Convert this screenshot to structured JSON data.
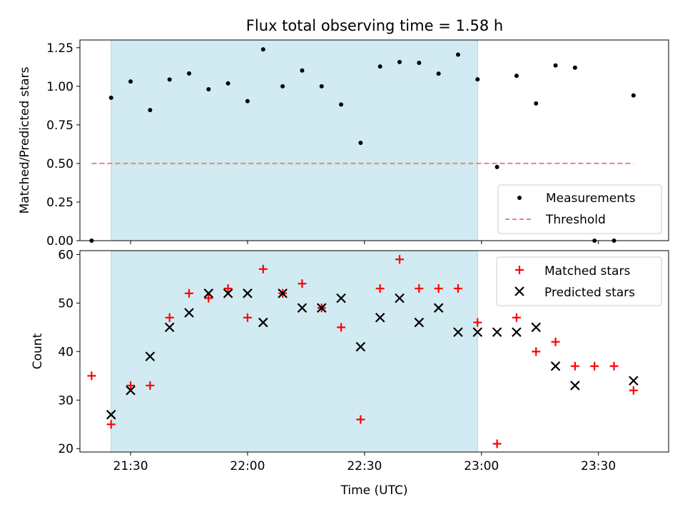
{
  "chart_data": [
    {
      "type": "scatter",
      "panel": "top",
      "title": "Flux total observing time = 1.58 h",
      "xlabel": "",
      "ylabel": "Matched/Predicted stars",
      "x_unit": "minutes",
      "xlim": [
        "21:17",
        "23:48"
      ],
      "ylim": [
        0,
        1.3
      ],
      "yticks": [
        0.0,
        0.25,
        0.5,
        0.75,
        1.0,
        1.25
      ],
      "ytick_labels": [
        "0.00",
        "0.25",
        "0.50",
        "0.75",
        "1.00",
        "1.25"
      ],
      "xticks": [
        "21:30",
        "22:00",
        "22:30",
        "23:00",
        "23:30"
      ],
      "legend_position": "lower-right",
      "shaded_span": [
        "21:25",
        "22:59"
      ],
      "colors": {
        "shade": "#add8e6",
        "measurements": "#000000",
        "threshold": "#f08080"
      },
      "series": [
        {
          "name": "Measurements",
          "marker": "dot",
          "x": [
            "21:20",
            "21:25",
            "21:30",
            "21:35",
            "21:40",
            "21:45",
            "21:50",
            "21:55",
            "22:00",
            "22:04",
            "22:09",
            "22:14",
            "22:19",
            "22:24",
            "22:29",
            "22:34",
            "22:39",
            "22:44",
            "22:49",
            "22:54",
            "22:59",
            "23:04",
            "23:09",
            "23:14",
            "23:19",
            "23:24",
            "23:29",
            "23:34",
            "23:39"
          ],
          "y": [
            0.0,
            0.926,
            1.031,
            0.846,
            1.044,
            1.083,
            0.981,
            1.019,
            0.904,
            1.239,
            1.0,
            1.102,
            1.0,
            0.882,
            0.634,
            1.128,
            1.157,
            1.152,
            1.082,
            1.205,
            1.045,
            0.477,
            1.068,
            0.889,
            1.135,
            1.121,
            0.0,
            0.0,
            0.941
          ]
        },
        {
          "name": "Threshold",
          "line": "dashed",
          "x": [
            "21:20",
            "23:39"
          ],
          "y": [
            0.5,
            0.5
          ]
        }
      ]
    },
    {
      "type": "scatter",
      "panel": "bottom",
      "title": "",
      "xlabel": "Time (UTC)",
      "ylabel": "Count",
      "x_unit": "minutes",
      "xlim": [
        "21:17",
        "23:48"
      ],
      "ylim": [
        19.3,
        60.8
      ],
      "yticks": [
        20,
        30,
        40,
        50,
        60
      ],
      "ytick_labels": [
        "20",
        "30",
        "40",
        "50",
        "60"
      ],
      "xticks": [
        "21:30",
        "22:00",
        "22:30",
        "23:00",
        "23:30"
      ],
      "legend_position": "upper-right",
      "shaded_span": [
        "21:25",
        "22:59"
      ],
      "colors": {
        "shade": "#add8e6",
        "matched": "#ff0000",
        "predicted": "#000000"
      },
      "series": [
        {
          "name": "Matched stars",
          "marker": "plus",
          "x": [
            "21:20",
            "21:25",
            "21:30",
            "21:35",
            "21:40",
            "21:45",
            "21:50",
            "21:55",
            "22:00",
            "22:04",
            "22:09",
            "22:14",
            "22:19",
            "22:24",
            "22:29",
            "22:34",
            "22:39",
            "22:44",
            "22:49",
            "22:54",
            "22:59",
            "23:04",
            "23:09",
            "23:14",
            "23:19",
            "23:24",
            "23:29",
            "23:34",
            "23:39"
          ],
          "y": [
            35,
            25,
            33,
            33,
            47,
            52,
            51,
            53,
            47,
            57,
            52,
            54,
            49,
            45,
            26,
            53,
            59,
            53,
            53,
            53,
            46,
            21,
            47,
            40,
            42,
            37,
            37,
            37,
            32
          ]
        },
        {
          "name": "Predicted stars",
          "marker": "x",
          "x": [
            "21:25",
            "21:30",
            "21:35",
            "21:40",
            "21:45",
            "21:50",
            "21:55",
            "22:00",
            "22:04",
            "22:09",
            "22:14",
            "22:19",
            "22:24",
            "22:29",
            "22:34",
            "22:39",
            "22:44",
            "22:49",
            "22:54",
            "22:59",
            "23:04",
            "23:09",
            "23:14",
            "23:19",
            "23:24",
            "23:39"
          ],
          "y": [
            27,
            32,
            39,
            45,
            48,
            52,
            52,
            52,
            46,
            52,
            49,
            49,
            51,
            41,
            47,
            51,
            46,
            49,
            44,
            44,
            44,
            44,
            45,
            37,
            33,
            34
          ]
        }
      ]
    }
  ]
}
